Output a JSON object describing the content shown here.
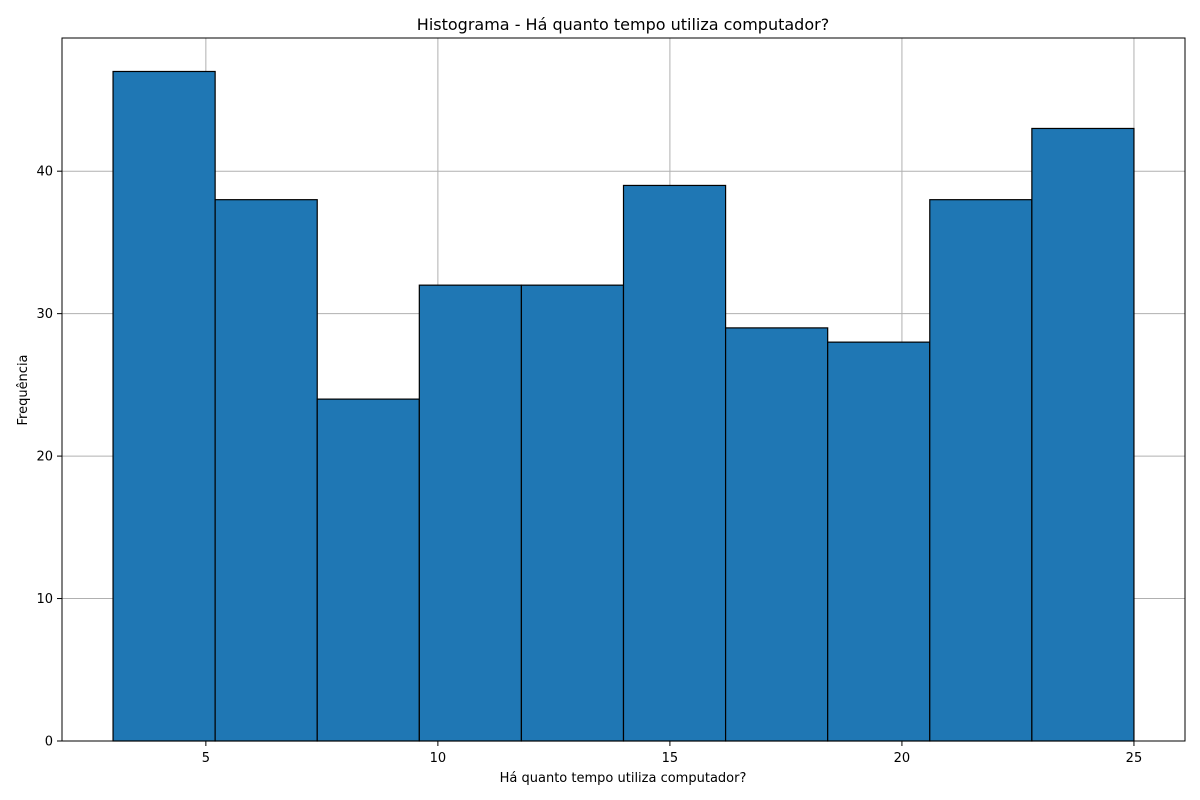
{
  "chart_data": {
    "type": "bar",
    "title": "Histograma - Há quanto tempo utiliza computador?",
    "xlabel": "Há quanto tempo utiliza computador?",
    "ylabel": "Frequência",
    "bin_edges": [
      3,
      5.2,
      7.4,
      9.6,
      11.8,
      14,
      16.2,
      18.4,
      20.6,
      22.8,
      25
    ],
    "values": [
      47,
      38,
      24,
      32,
      32,
      39,
      29,
      28,
      38,
      43
    ],
    "xlim": [
      1.9,
      26.1
    ],
    "ylim": [
      0,
      49.35
    ],
    "xticks": [
      5,
      10,
      15,
      20,
      25
    ],
    "yticks": [
      0,
      10,
      20,
      30,
      40
    ],
    "grid": true,
    "bar_color": "#1f77b4",
    "edge_color": "#000000"
  }
}
